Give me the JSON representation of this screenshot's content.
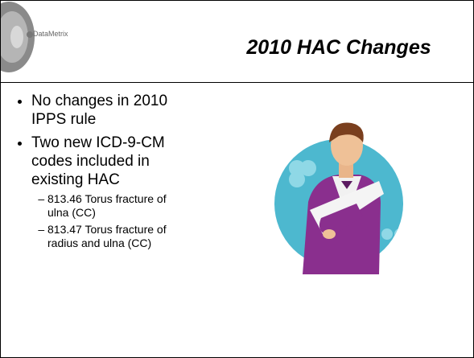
{
  "header": {
    "logo": "DataMetrix",
    "title": "2010 HAC Changes"
  },
  "bullets": [
    {
      "text": "No changes in 2010 IPPS rule"
    },
    {
      "text": "Two new ICD-9-CM codes included in existing HAC",
      "sub": [
        "813.46 Torus fracture of ulna (CC)",
        "813.47 Torus fracture of radius and ulna (CC)"
      ]
    }
  ]
}
